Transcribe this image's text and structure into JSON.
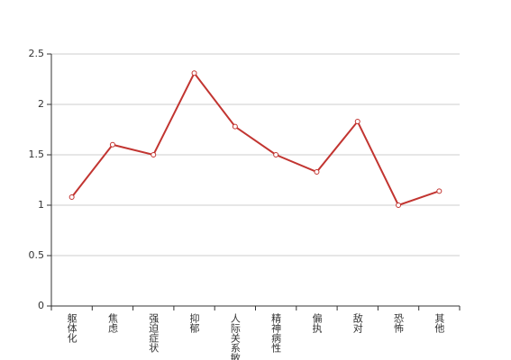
{
  "chart_data": {
    "type": "line",
    "categories": [
      "躯体化",
      "焦虑",
      "强迫症状",
      "抑郁",
      "人际关系敏感",
      "精神病性",
      "偏执",
      "敌对",
      "恐怖",
      "其他"
    ],
    "values": [
      1.08,
      1.6,
      1.5,
      2.31,
      1.78,
      1.5,
      1.33,
      1.83,
      1.0,
      1.14
    ],
    "color": "#c23531",
    "ylim": [
      0,
      2.5
    ],
    "yticks": [
      0,
      0.5,
      1,
      1.5,
      2,
      2.5
    ],
    "grid": true
  }
}
